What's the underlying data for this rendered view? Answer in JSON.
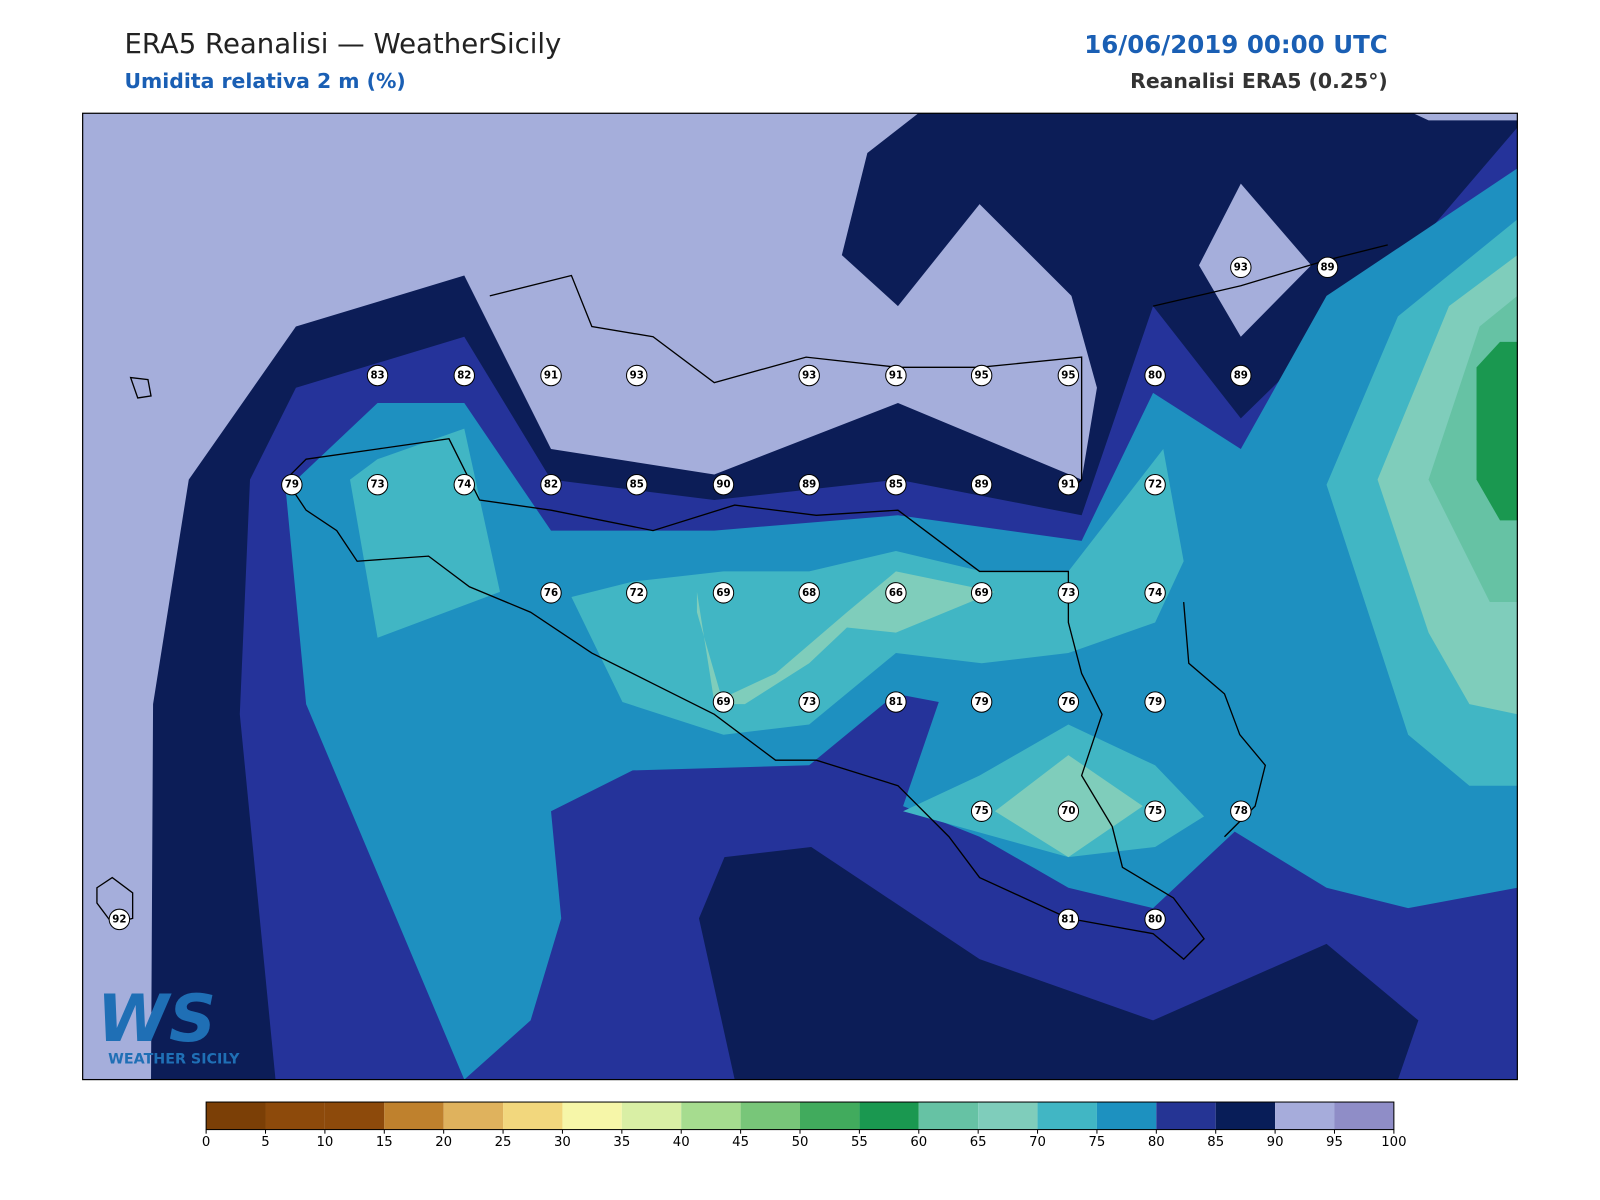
{
  "header": {
    "title": "ERA5 Reanalisi — WeatherSicily",
    "subtitle": "Umidita relativa 2 m (%)",
    "datetime": "16/06/2019 00:00 UTC",
    "source": "Reanalisi ERA5 (0.25°)"
  },
  "stations": [
    93,
    89,
    83,
    82,
    91,
    93,
    93,
    91,
    95,
    95,
    80,
    89,
    79,
    73,
    74,
    82,
    85,
    90,
    89,
    85,
    89,
    91,
    72,
    76,
    72,
    69,
    68,
    66,
    69,
    73,
    74,
    69,
    73,
    81,
    79,
    76,
    79,
    75,
    70,
    75,
    78,
    92,
    81,
    80
  ],
  "colorbar": {
    "ticks": [
      0,
      5,
      10,
      15,
      20,
      25,
      30,
      35,
      40,
      45,
      50,
      55,
      60,
      65,
      70,
      75,
      80,
      85,
      90,
      95,
      100
    ],
    "colors": [
      "#7b3f06",
      "#8d4a0b",
      "#8d4a0b",
      "#bf812d",
      "#dfb25d",
      "#f2d77d",
      "#f6f6a8",
      "#d9efa5",
      "#a6dc8f",
      "#78c679",
      "#41ab5d",
      "#1a9850",
      "#66c2a4",
      "#7fcdbb",
      "#41b6c4",
      "#1d91c0",
      "#253494",
      "#081d58",
      "#a6acdb",
      "#8f8dc7"
    ]
  },
  "logo": {
    "mark": "WS",
    "text": "WEATHER SICILY"
  }
}
